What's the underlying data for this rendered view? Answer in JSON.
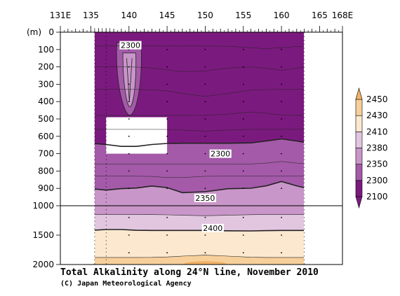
{
  "chart_data": {
    "type": "heatmap",
    "title": "Total Alkalinity along 24°N line, November 2010",
    "credit": "(C) Japan Meteorological Agency",
    "x_axis": {
      "unit_note": "longitude (E)",
      "range": [
        131,
        168
      ],
      "tick_labels": [
        {
          "value": 131,
          "text": "131E"
        },
        {
          "value": 135,
          "text": "135"
        },
        {
          "value": 140,
          "text": "140"
        },
        {
          "value": 145,
          "text": "145"
        },
        {
          "value": 150,
          "text": "150"
        },
        {
          "value": 155,
          "text": "155"
        },
        {
          "value": 160,
          "text": "160"
        },
        {
          "value": 165,
          "text": "165"
        },
        {
          "value": 168,
          "text": "168E"
        }
      ]
    },
    "y_axis": {
      "unit": "(m)",
      "reversed": true,
      "segments": [
        {
          "range": [
            0,
            1000
          ],
          "ticks": [
            "0",
            "100",
            "200",
            "300",
            "400",
            "500",
            "600",
            "700",
            "800",
            "900",
            "1000"
          ]
        },
        {
          "range": [
            1000,
            2000
          ],
          "ticks": [
            "1500",
            "2000"
          ]
        }
      ],
      "break_depth": 1000
    },
    "data_extent": {
      "lon": [
        135.5,
        163
      ]
    },
    "missing_region": {
      "lon": [
        137,
        145
      ],
      "depth": [
        490,
        700
      ]
    },
    "contour_labels": [
      {
        "text": "2300",
        "lon": 140.2,
        "depth": 75
      },
      {
        "text": "2300",
        "lon": 152,
        "depth": 700
      },
      {
        "text": "2350",
        "lon": 150,
        "depth": 955
      },
      {
        "text": "2400",
        "lon": 151,
        "depth": 1380
      }
    ],
    "colorbar": {
      "levels": [
        "2100",
        "2300",
        "2350",
        "2380",
        "2410",
        "2430",
        "2450"
      ],
      "colors": [
        "#7b1a7e",
        "#a45aa8",
        "#c996c9",
        "#e2c6e0",
        "#fbe8cf",
        "#f7cf9b",
        "#f2b266"
      ],
      "extend": "both"
    }
  }
}
